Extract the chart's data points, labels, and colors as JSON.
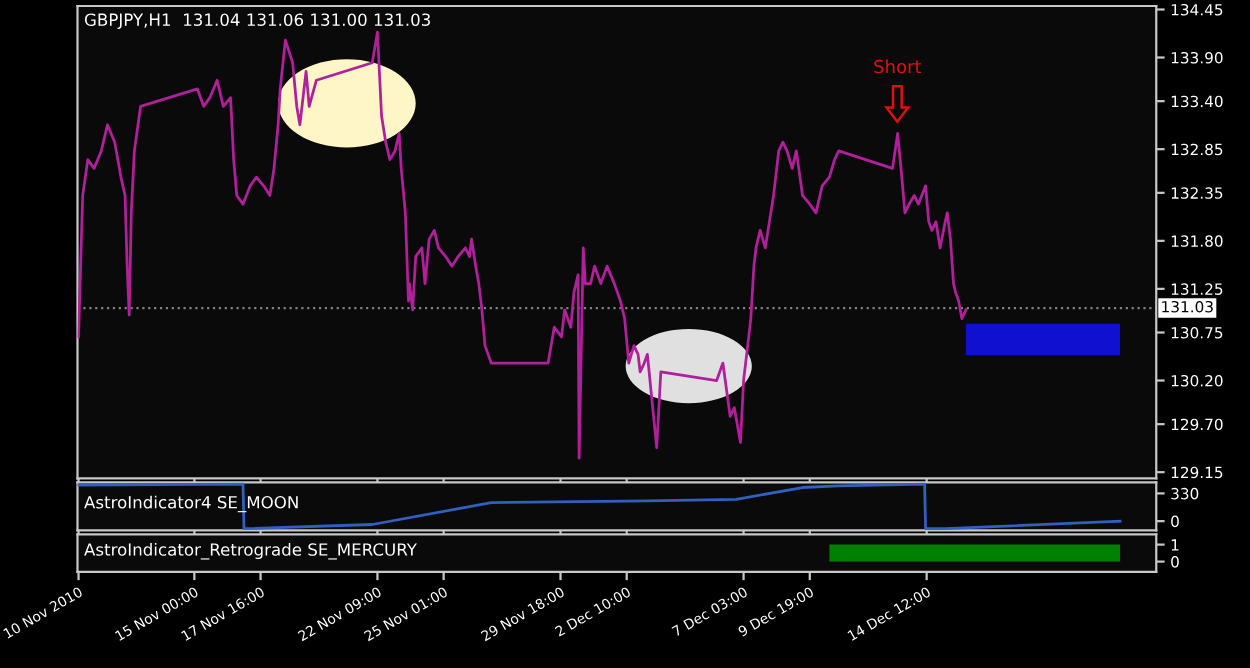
{
  "chart_data": [
    {
      "type": "line",
      "title": "GBPJPY,H1  131.04 131.06 131.00 131.03",
      "x": [
        "2010-11-10T08:00",
        "2010-11-10T12:00",
        "2010-11-10T17:00",
        "2010-11-10T23:00",
        "2010-11-11T06:00",
        "2010-11-11T12:00",
        "2010-11-11T19:00",
        "2010-11-12T01:00",
        "2010-11-12T05:00",
        "2010-11-12T07:00",
        "2010-11-12T09:00",
        "2010-11-12T11:00",
        "2010-11-12T14:00",
        "2010-11-12T20:00",
        "2010-11-15T03:00",
        "2010-11-15T09:00",
        "2010-11-15T15:00",
        "2010-11-15T22:00",
        "2010-11-16T04:00",
        "2010-11-16T11:00",
        "2010-11-16T14:00",
        "2010-11-16T17:00",
        "2010-11-16T23:00",
        "2010-11-17T06:00",
        "2010-11-17T12:00",
        "2010-11-17T19:00",
        "2010-11-18T01:00",
        "2010-11-18T05:00",
        "2010-11-18T09:00",
        "2010-11-18T11:00",
        "2010-11-18T16:00",
        "2010-11-18T23:00",
        "2010-11-19T03:00",
        "2010-11-19T06:00",
        "2010-11-19T12:00",
        "2010-11-19T15:00",
        "2010-11-19T22:00",
        "2010-11-22T04:00",
        "2010-11-22T09:00",
        "2010-11-22T13:00",
        "2010-11-22T17:00",
        "2010-11-22T21:00",
        "2010-11-23T02:00",
        "2010-11-23T06:00",
        "2010-11-23T08:00",
        "2010-11-23T12:00",
        "2010-11-23T15:00",
        "2010-11-23T16:00",
        "2010-11-23T19:00",
        "2010-11-23T22:00",
        "2010-11-24T04:00",
        "2010-11-24T07:00",
        "2010-11-24T11:00",
        "2010-11-24T16:00",
        "2010-11-24T20:00",
        "2010-11-25T03:00",
        "2010-11-25T09:00",
        "2010-11-25T15:00",
        "2010-11-25T22:00",
        "2010-11-26T02:00",
        "2010-11-26T04:00",
        "2010-11-26T08:00",
        "2010-11-26T11:00",
        "2010-11-26T14:00",
        "2010-11-26T17:00",
        "2010-11-26T23:00",
        "2010-11-29T06:00",
        "2010-11-29T12:00",
        "2010-11-29T19:00",
        "2010-11-29T22:00",
        "2010-11-30T04:00",
        "2010-11-30T07:00",
        "2010-11-30T11:00",
        "2010-11-30T12:00",
        "2010-11-30T16:00",
        "2010-11-30T18:00",
        "2010-11-30T23:00",
        "2010-12-01T03:00",
        "2010-12-01T09:00",
        "2010-12-01T15:00",
        "2010-12-01T22:00",
        "2010-12-02T04:00",
        "2010-12-02T08:00",
        "2010-12-02T12:00",
        "2010-12-02T17:00",
        "2010-12-02T21:00",
        "2010-12-02T23:00",
        "2010-12-03T03:00",
        "2010-12-03T06:00",
        "2010-12-03T15:00",
        "2010-12-03T19:00",
        "2010-12-06T01:00",
        "2010-12-06T07:00",
        "2010-12-06T14:00",
        "2010-12-06T18:00",
        "2010-12-07T00:00",
        "2010-12-07T03:00",
        "2010-12-07T06:00",
        "2010-12-07T10:00",
        "2010-12-07T13:00",
        "2010-12-07T15:00",
        "2010-12-07T19:00",
        "2010-12-08T00:00",
        "2010-12-08T04:00",
        "2010-12-08T08:00",
        "2010-12-08T13:00",
        "2010-12-08T17:00",
        "2010-12-08T21:00",
        "2010-12-09T02:00",
        "2010-12-09T06:00",
        "2010-12-09T12:00",
        "2010-12-09T19:00",
        "2010-12-10T01:00",
        "2010-12-10T07:00",
        "2010-12-10T14:00",
        "2010-12-10T19:00",
        "2010-12-10T23:00",
        "2010-12-13T03:00",
        "2010-12-13T08:00",
        "2010-12-13T12:00",
        "2010-12-13T15:00",
        "2010-12-13T19:00",
        "2010-12-14T00:00",
        "2010-12-14T04:00",
        "2010-12-14T11:00",
        "2010-12-14T14:00",
        "2010-12-14T17:00",
        "2010-12-14T21:00",
        "2010-12-15T01:00",
        "2010-12-15T06:00",
        "2010-12-15T08:00",
        "2010-12-15T11:00",
        "2010-12-15T14:00",
        "2010-12-15T16:00",
        "2010-12-15T19:00",
        "2010-12-15T22:00",
        "2010-12-16T02:00"
      ],
      "series": [
        {
          "color": "#b0209a",
          "values": [
            130.7,
            132.32,
            132.73,
            132.63,
            132.83,
            133.13,
            132.93,
            132.53,
            132.32,
            131.51,
            130.95,
            132.12,
            132.83,
            133.34,
            133.54,
            133.34,
            133.44,
            133.64,
            133.34,
            133.44,
            132.73,
            132.32,
            132.22,
            132.43,
            132.53,
            132.43,
            132.32,
            132.63,
            133.13,
            133.54,
            134.1,
            133.84,
            133.34,
            133.13,
            133.74,
            133.34,
            133.64,
            133.84,
            134.19,
            133.23,
            132.93,
            132.73,
            132.83,
            133.03,
            132.63,
            132.12,
            131.11,
            131.31,
            131.01,
            131.62,
            131.72,
            131.31,
            131.82,
            131.92,
            131.72,
            131.62,
            131.51,
            131.62,
            131.72,
            131.62,
            131.82,
            131.51,
            131.31,
            131.01,
            130.6,
            130.4,
            130.4,
            130.81,
            130.7,
            131.01,
            130.81,
            131.21,
            131.41,
            129.31,
            131.72,
            131.31,
            131.31,
            131.51,
            131.31,
            131.51,
            131.31,
            131.11,
            130.91,
            130.4,
            130.6,
            130.5,
            130.3,
            130.4,
            130.5,
            129.43,
            130.3,
            130.2,
            130.4,
            129.79,
            129.89,
            129.49,
            130.2,
            130.5,
            130.91,
            131.51,
            131.72,
            131.92,
            131.72,
            132.02,
            132.32,
            132.83,
            132.93,
            132.83,
            132.63,
            132.83,
            132.32,
            132.22,
            132.12,
            132.43,
            132.53,
            132.73,
            132.83,
            132.63,
            133.03,
            132.53,
            132.12,
            132.22,
            132.32,
            132.22,
            132.43,
            132.02,
            131.92,
            132.02,
            131.72,
            132.02,
            132.12,
            131.82,
            131.31,
            131.21,
            131.11,
            130.91,
            131.01
          ]
        }
      ],
      "xlim": [
        "2010-11-10T07:00",
        "2010-12-23T18:00"
      ],
      "xticks": [
        {
          "value": "2010-11-10T08:00",
          "label": null
        },
        {
          "value": "2010-11-15T00:00",
          "label": null
        },
        {
          "value": "2010-11-17T16:00",
          "label": null
        },
        {
          "value": "2010-11-22T09:00",
          "label": null
        },
        {
          "value": "2010-11-25T01:00",
          "label": null
        },
        {
          "value": "2010-11-29T18:00",
          "label": null
        },
        {
          "value": "2010-12-02T10:00",
          "label": null
        },
        {
          "value": "2010-12-07T03:00",
          "label": null
        },
        {
          "value": "2010-12-09T19:00",
          "label": null
        },
        {
          "value": "2010-12-14T12:00",
          "label": null
        }
      ],
      "ylim": [
        129.08,
        134.49
      ],
      "yticks": [
        {
          "value": 134.45,
          "label": "134.45"
        },
        {
          "value": 133.9,
          "label": "133.90"
        },
        {
          "value": 133.4,
          "label": "133.40"
        },
        {
          "value": 132.85,
          "label": "132.85"
        },
        {
          "value": 132.35,
          "label": "132.35"
        },
        {
          "value": 131.8,
          "label": "131.80"
        },
        {
          "value": 131.25,
          "label": "131.25"
        },
        {
          "value": 130.75,
          "label": "130.75"
        },
        {
          "value": 130.2,
          "label": "130.20"
        },
        {
          "value": 129.7,
          "label": "129.70"
        },
        {
          "value": 129.15,
          "label": "129.15"
        }
      ],
      "tick_labels": "y",
      "ref_lines": [
        {
          "axis": "y",
          "value": 131.03,
          "label": "131.03",
          "color": "#808080",
          "line_style": "dotted"
        }
      ],
      "annotations": [
        "Short"
      ]
    },
    {
      "type": "line",
      "title": "AstroIndicator4 SE_MOON",
      "x": [
        "2010-11-10T08:00",
        "2010-11-16T23:00",
        "2010-11-17T00:00",
        "2010-11-22T04:00",
        "2010-11-26T23:00",
        "2010-12-03T06:00",
        "2010-12-06T20:00",
        "2010-12-09T12:00",
        "2010-12-10T23:00",
        "2010-12-14T10:00",
        "2010-12-14T11:00",
        "2010-12-15T06:00",
        "2010-12-22T07:00"
      ],
      "series": [
        {
          "color": "#3060c0",
          "values": [
            430,
            440,
            -90,
            -40,
            220,
            240,
            260,
            400,
            420,
            440,
            -90,
            -90,
            0
          ]
        }
      ],
      "xlim": [
        "2010-11-10T07:00",
        "2010-12-23T18:00"
      ],
      "xticks": [
        {
          "value": "2010-11-10T08:00",
          "label": null
        },
        {
          "value": "2010-11-15T00:00",
          "label": null
        },
        {
          "value": "2010-11-17T16:00",
          "label": null
        },
        {
          "value": "2010-11-22T09:00",
          "label": null
        },
        {
          "value": "2010-11-25T01:00",
          "label": null
        },
        {
          "value": "2010-11-29T18:00",
          "label": null
        },
        {
          "value": "2010-12-02T10:00",
          "label": null
        },
        {
          "value": "2010-12-07T03:00",
          "label": null
        },
        {
          "value": "2010-12-09T19:00",
          "label": null
        },
        {
          "value": "2010-12-14T12:00",
          "label": null
        }
      ],
      "ylim": [
        -110,
        462
      ],
      "yticks": [
        0,
        330
      ],
      "tick_labels": "y"
    },
    {
      "type": "area",
      "title": "AstroIndicator_Retrograde SE_MERCURY",
      "x": [
        "2010-12-10T14:00",
        "2010-12-22T07:00"
      ],
      "series": [
        {
          "color": "#008000",
          "values": [
            1,
            1
          ]
        }
      ],
      "xlim": [
        "2010-11-10T07:00",
        "2010-12-23T18:00"
      ],
      "xticks": [
        {
          "value": "2010-11-10T08:00",
          "label": "10 Nov 2010"
        },
        {
          "value": "2010-11-15T00:00",
          "label": "15 Nov 00:00"
        },
        {
          "value": "2010-11-17T16:00",
          "label": "17 Nov 16:00"
        },
        {
          "value": "2010-11-22T09:00",
          "label": "22 Nov 09:00"
        },
        {
          "value": "2010-11-25T01:00",
          "label": "25 Nov 01:00"
        },
        {
          "value": "2010-11-29T18:00",
          "label": "29 Nov 18:00"
        },
        {
          "value": "2010-12-02T10:00",
          "label": "2 Dec 10:00"
        },
        {
          "value": "2010-12-07T03:00",
          "label": "7 Dec 03:00"
        },
        {
          "value": "2010-12-09T19:00",
          "label": "9 Dec 19:00"
        },
        {
          "value": "2010-12-14T12:00",
          "label": "14 Dec 12:00"
        }
      ],
      "ylim": [
        -0.6,
        1.6
      ],
      "yticks": [
        0,
        1
      ]
    }
  ]
}
